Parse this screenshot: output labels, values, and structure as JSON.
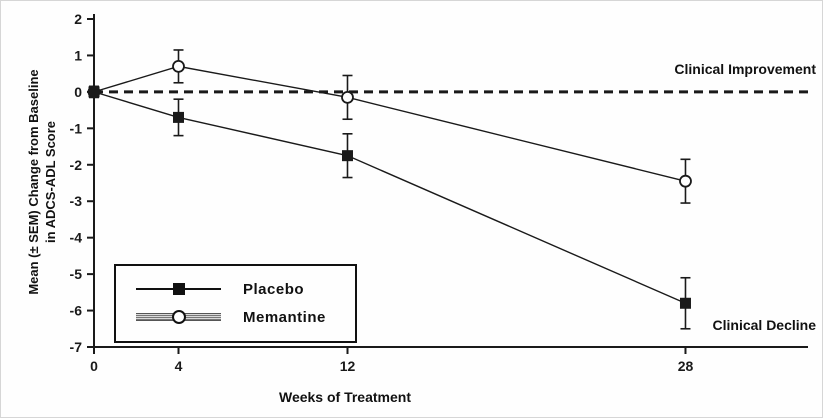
{
  "chart_data": {
    "type": "line",
    "title": "",
    "xlabel": "Weeks of Treatment",
    "ylabel": "Mean (± SEM) Change from Baseline in ADCS-ADL Score",
    "ylabel_lines": [
      "Mean (± SEM) Change from Baseline",
      "in ADCS-ADL Score"
    ],
    "x": [
      0,
      4,
      12,
      28
    ],
    "xticks": [
      0,
      4,
      12,
      28
    ],
    "xlim": [
      0,
      33.8
    ],
    "ylim": [
      -7,
      2
    ],
    "yticks": [
      2,
      1,
      0,
      -1,
      -2,
      -3,
      -4,
      -5,
      -6,
      -7
    ],
    "grid": false,
    "legend_position": "lower-left",
    "zero_line": {
      "y": 0,
      "style": "dashed"
    },
    "annotations": {
      "above_line": "Clinical Improvement",
      "below_line": "Clinical Decline"
    },
    "series": [
      {
        "name": "Placebo",
        "marker": "filled-square",
        "values": [
          0,
          -0.7,
          -1.75,
          -5.8
        ],
        "sem": [
          0.15,
          0.5,
          0.6,
          0.7
        ]
      },
      {
        "name": "Memantine",
        "marker": "open-circle",
        "values": [
          0,
          0.7,
          -0.15,
          -2.45
        ],
        "sem": [
          0.15,
          0.45,
          0.6,
          0.6
        ]
      }
    ]
  },
  "colors": {
    "ink": "#1a1a1a",
    "background": "#fefefe"
  }
}
